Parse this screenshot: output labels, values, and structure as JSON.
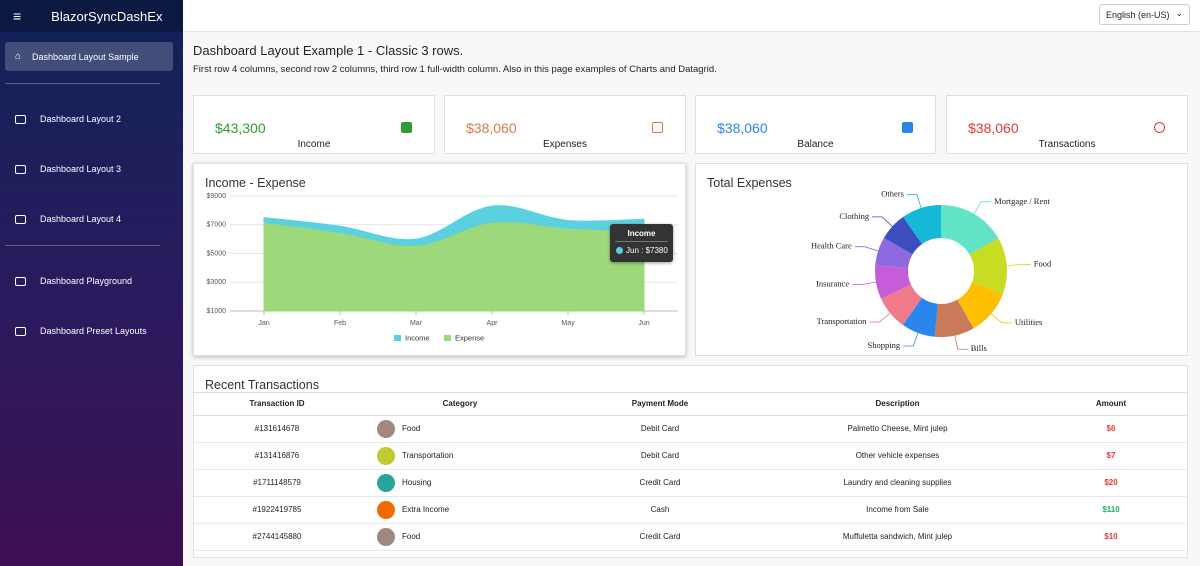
{
  "app": {
    "brand": "BlazorSyncDashEx",
    "language": "English (en-US)",
    "nav": [
      "Dashboard Layout Sample",
      "Dashboard Layout 2",
      "Dashboard Layout 3",
      "Dashboard Layout 4",
      "Dashboard Playground",
      "Dashboard Preset Layouts"
    ]
  },
  "page": {
    "title": "Dashboard Layout Example 1 - Classic 3 rows.",
    "subtitle": "First row 4 columns, second row 2 columns, third row 1 full-width column. Also in this page examples of Charts and Datagrid."
  },
  "cards": [
    {
      "value": "$43,300",
      "label": "Income"
    },
    {
      "value": "$38,060",
      "label": "Expenses"
    },
    {
      "value": "$38,060",
      "label": "Balance"
    },
    {
      "value": "$38,060",
      "label": "Transactions"
    }
  ],
  "chart_data": [
    {
      "type": "area",
      "title": "Income - Expense",
      "categories": [
        "Jan",
        "Feb",
        "Mar",
        "Apr",
        "May",
        "Jun"
      ],
      "series": [
        {
          "name": "Income",
          "color": "#5bd0e0",
          "values": [
            7500,
            6900,
            6000,
            8300,
            7300,
            7380
          ]
        },
        {
          "name": "Expense",
          "color": "#9dd87a",
          "values": [
            7100,
            6400,
            5500,
            7100,
            6700,
            6500
          ]
        }
      ],
      "ylim": [
        1000,
        9000
      ],
      "yticks": [
        {
          "value": 1000,
          "label": "$1000"
        },
        {
          "value": 3000,
          "label": "$3000"
        },
        {
          "value": 5000,
          "label": "$5000"
        },
        {
          "value": 7000,
          "label": "$7000"
        },
        {
          "value": 9000,
          "label": "$9000"
        }
      ],
      "grid": true,
      "tooltip": {
        "title": "Income",
        "text": "Jun : $7380"
      }
    },
    {
      "type": "donut",
      "title": "Total Expenses",
      "categories": [
        "Mortgage / Rent",
        "Food",
        "Utilities",
        "Bills",
        "Shopping",
        "Transportation",
        "Insurance",
        "Health Care",
        "Clothing",
        "Others"
      ],
      "values": [
        16.7,
        13.9,
        11.1,
        9.7,
        8.3,
        8.3,
        8.3,
        6.9,
        6.9,
        9.7
      ],
      "colors": [
        "#61e3c4",
        "#c9dc24",
        "#fdbf00",
        "#c97a5a",
        "#2a85ec",
        "#f07a8a",
        "#c55dd8",
        "#8e6ae0",
        "#3d4fc0",
        "#15b9d6"
      ]
    }
  ],
  "table": {
    "title": "Recent Transactions",
    "columns": [
      "Transaction ID",
      "Category",
      "Payment Mode",
      "Description",
      "Amount"
    ],
    "rows": [
      [
        "#131614678",
        "Food",
        "Debit Card",
        "Palmetto Cheese, Mint julep",
        "$6"
      ],
      [
        "#131416876",
        "Transportation",
        "Debit Card",
        "Other vehicle expenses",
        "$7"
      ],
      [
        "#1711148579",
        "Housing",
        "Credit Card",
        "Laundry and cleaning supplies",
        "$20"
      ],
      [
        "#1922419785",
        "Extra Income",
        "Cash",
        "Income from Sale",
        "$110"
      ],
      [
        "#2744145880",
        "Food",
        "Credit Card",
        "Muffuletta sandwich, Mint julep",
        "$10"
      ]
    ]
  }
}
